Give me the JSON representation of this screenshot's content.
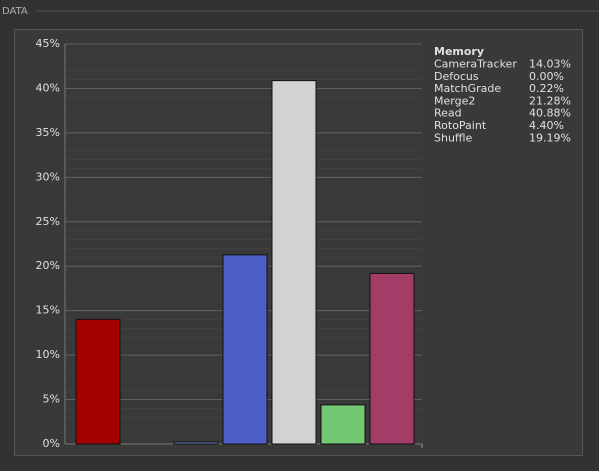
{
  "panel_title": "DATA",
  "chart_data": {
    "type": "bar",
    "legend_title": "Memory",
    "categories": [
      "CameraTracker",
      "Defocus",
      "MatchGrade",
      "Merge2",
      "Read",
      "RotoPaint",
      "Shuffle"
    ],
    "values": [
      14.03,
      0,
      0.22,
      21.28,
      40.88,
      4.4,
      19.19
    ],
    "value_labels": [
      "14.03%",
      "0.00%",
      "0.22%",
      "21.28%",
      "40.88%",
      "4.40%",
      "19.19%"
    ],
    "colors": [
      "#a30000",
      "#1a1a1a",
      "#6e8fd6",
      "#4f5fc8",
      "#d2d2d2",
      "#73c873",
      "#a33c66"
    ],
    "ylim": [
      0,
      45
    ],
    "yticks": [
      {
        "value": 0,
        "label": "0%"
      },
      {
        "value": 5,
        "label": "5%"
      },
      {
        "value": 10,
        "label": "10%"
      },
      {
        "value": 15,
        "label": "15%"
      },
      {
        "value": 20,
        "label": "20%"
      },
      {
        "value": 25,
        "label": "25%"
      },
      {
        "value": 30,
        "label": "30%"
      },
      {
        "value": 35,
        "label": "35%"
      },
      {
        "value": 40,
        "label": "40%"
      },
      {
        "value": 45,
        "label": "45%"
      }
    ],
    "grid": true
  }
}
